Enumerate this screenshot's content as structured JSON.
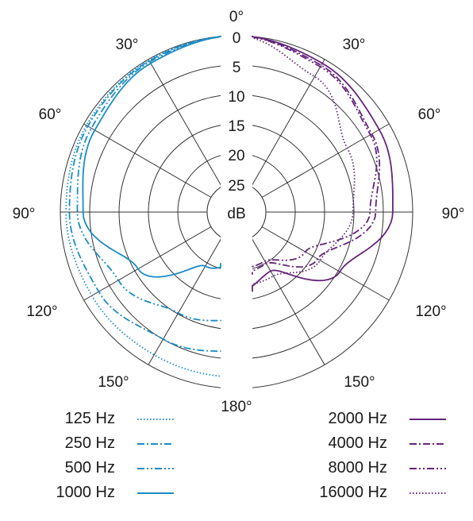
{
  "chart_data": {
    "type": "polar",
    "angle_labels": [
      "0°",
      "30°",
      "60°",
      "90°",
      "120°",
      "150°",
      "180°"
    ],
    "radial_labels": [
      "0",
      "5",
      "10",
      "15",
      "20",
      "25",
      "dB"
    ],
    "radial_range_db": [
      0,
      25
    ],
    "angles_deg": [
      0,
      30,
      60,
      90,
      120,
      150,
      180
    ],
    "colors": {
      "low": "#1b8cc4",
      "high": "#63257a"
    },
    "series": [
      {
        "name": "125 Hz",
        "side": "left",
        "dash": "dotted",
        "attenuation_db": [
          0,
          0.2,
          0.5,
          1.0,
          1.6,
          2.0,
          2.0
        ]
      },
      {
        "name": "250 Hz",
        "side": "left",
        "dash": "dash-dot",
        "attenuation_db": [
          0,
          0.3,
          0.8,
          1.6,
          3.0,
          5.2,
          6.5
        ]
      },
      {
        "name": "500 Hz",
        "side": "left",
        "dash": "dash-dot-dot",
        "attenuation_db": [
          0,
          0.5,
          1.5,
          3.0,
          7.0,
          10.5,
          12.0
        ]
      },
      {
        "name": "1000 Hz",
        "side": "left",
        "dash": "solid",
        "attenuation_db": [
          0,
          0.8,
          2.2,
          4.0,
          11.0,
          20.0,
          22.0
        ]
      },
      {
        "name": "2000 Hz",
        "side": "right",
        "dash": "solid",
        "attenuation_db": [
          0,
          0.8,
          2.0,
          3.5,
          10.0,
          19.0,
          17.0
        ]
      },
      {
        "name": "4000 Hz",
        "side": "right",
        "dash": "dash-dot",
        "attenuation_db": [
          0,
          1.2,
          3.5,
          6.5,
          14.5,
          20.5,
          20.0
        ]
      },
      {
        "name": "8000 Hz",
        "side": "right",
        "dash": "dash-dot-dot",
        "attenuation_db": [
          0,
          1.5,
          3.8,
          7.5,
          17.0,
          21.0,
          21.0
        ]
      },
      {
        "name": "16000 Hz",
        "side": "right",
        "dash": "dotted",
        "attenuation_db": [
          0,
          3.5,
          8.5,
          10.5,
          14.0,
          18.0,
          18.0
        ]
      }
    ]
  }
}
